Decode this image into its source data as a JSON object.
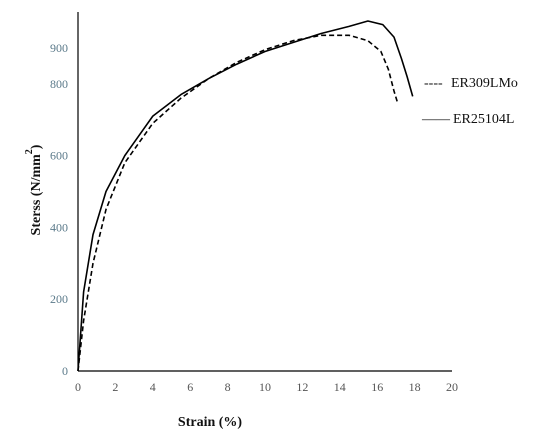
{
  "chart_data": {
    "type": "line",
    "title": "",
    "xlabel": "Strain (%)",
    "ylabel": "Sterss (N/mm",
    "ylabel_superscript": "2",
    "ylabel_close": ")",
    "xlim": [
      0,
      20
    ],
    "ylim": [
      0,
      1000
    ],
    "xticks": [
      "0",
      "2",
      "4",
      "6",
      "8",
      "10",
      "12",
      "14",
      "16",
      "18",
      "20"
    ],
    "yticks": [
      "0",
      "200",
      "400",
      "600",
      "800",
      "900"
    ],
    "grid": false,
    "legend_position": "right",
    "series": [
      {
        "name": "ER309LMo",
        "style": "dashed",
        "color": "#000000",
        "legend_marker": "----",
        "x": [
          0,
          0.3,
          0.8,
          1.5,
          2.5,
          4,
          5.5,
          7,
          8.5,
          10,
          11.5,
          13,
          14.5,
          15.5,
          16.2,
          16.6,
          16.9,
          17.1
        ],
        "y": [
          0,
          140,
          300,
          450,
          580,
          690,
          760,
          815,
          860,
          895,
          920,
          935,
          935,
          920,
          890,
          840,
          780,
          745
        ]
      },
      {
        "name": "ER25104L",
        "style": "solid",
        "color": "#000000",
        "legend_marker": "——",
        "x": [
          0,
          0.3,
          0.8,
          1.5,
          2.5,
          4,
          5.5,
          7,
          8.5,
          10,
          11.5,
          13,
          14.5,
          15.5,
          16.3,
          16.9,
          17.3,
          17.6,
          17.9
        ],
        "y": [
          0,
          220,
          380,
          500,
          600,
          710,
          770,
          815,
          855,
          890,
          915,
          940,
          960,
          975,
          965,
          930,
          870,
          820,
          765
        ]
      }
    ]
  }
}
